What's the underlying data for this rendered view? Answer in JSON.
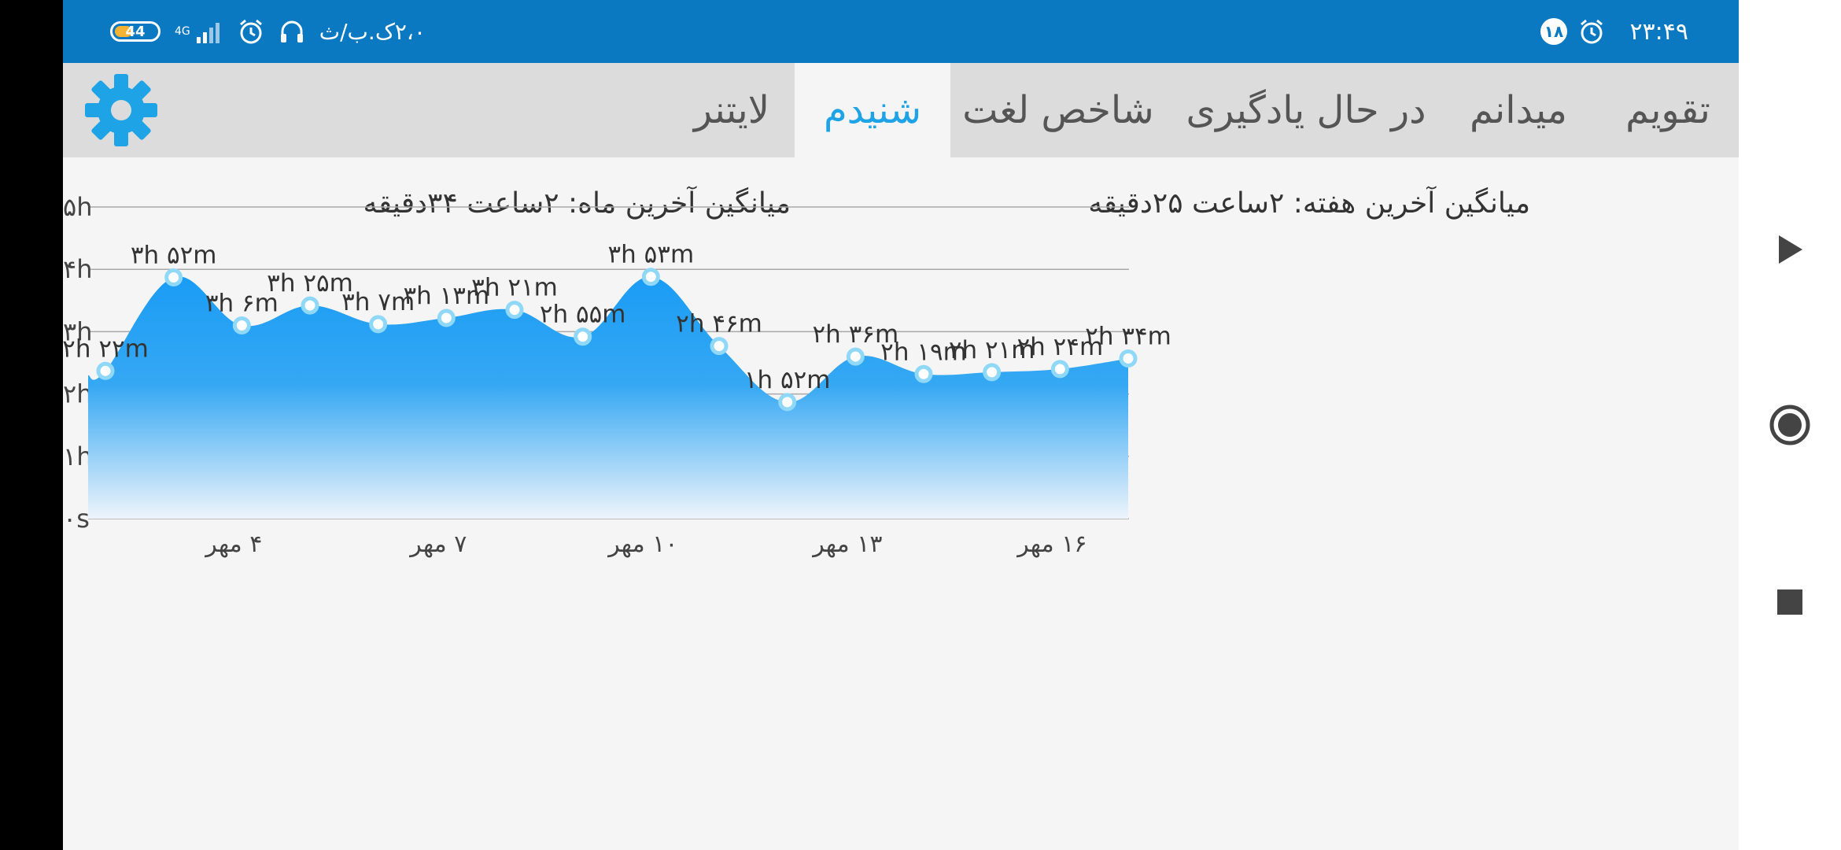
{
  "status_bar": {
    "time": "۲۳:۴۹",
    "notification_count": "۱۸",
    "speed": "۲،۰ک.ب/ث",
    "network": "4G",
    "battery": "44"
  },
  "tabs": [
    {
      "label": "تقویم",
      "active": false
    },
    {
      "label": "میدانم",
      "active": false
    },
    {
      "label": "در حال یادگیری",
      "active": false
    },
    {
      "label": "شاخص لغت",
      "active": false
    },
    {
      "label": "شنیدم",
      "active": true
    },
    {
      "label": "لایتنر",
      "active": false
    }
  ],
  "averages": {
    "week": "میانگین آخرین هفته: ۲ساعت  ۲۵دقیقه",
    "month": "میانگین آخرین ماه: ۲ساعت  ۳۴دقیقه"
  },
  "colors": {
    "accent": "#1ea3e6",
    "status_bar": "#0a79c1",
    "area_top": "#1a9cf5",
    "area_bottom": "#eef4fb"
  },
  "chart_data": {
    "type": "area",
    "ylim": [
      0,
      5
    ],
    "y_ticks": [
      "۰s",
      "۱h",
      "۲h",
      "۳h",
      "۴h",
      "۵h"
    ],
    "x_tick_labels": [
      {
        "index": 2,
        "label": "۴ مهر"
      },
      {
        "index": 5,
        "label": "۷ مهر"
      },
      {
        "index": 8,
        "label": "۱۰ مهر"
      },
      {
        "index": 11,
        "label": "۱۳ مهر"
      },
      {
        "index": 14,
        "label": "۱۶ مهر"
      }
    ],
    "points": [
      {
        "index": 0,
        "value": 2.37,
        "label": "۲h ۲۲m"
      },
      {
        "index": 1,
        "value": 3.87,
        "label": "۳h ۵۲m"
      },
      {
        "index": 2,
        "value": 3.1,
        "label": "۳h ۶m"
      },
      {
        "index": 3,
        "value": 3.42,
        "label": "۳h ۲۵m"
      },
      {
        "index": 4,
        "value": 3.12,
        "label": "۳h ۷m"
      },
      {
        "index": 5,
        "value": 3.22,
        "label": "۳h ۱۳m"
      },
      {
        "index": 6,
        "value": 3.35,
        "label": "۳h ۲۱m"
      },
      {
        "index": 7,
        "value": 2.92,
        "label": "۲h ۵۵m"
      },
      {
        "index": 8,
        "value": 3.88,
        "label": "۳h ۵۳m"
      },
      {
        "index": 9,
        "value": 2.77,
        "label": "۲h ۴۶m"
      },
      {
        "index": 10,
        "value": 1.87,
        "label": "۱h ۵۲m"
      },
      {
        "index": 11,
        "value": 2.6,
        "label": "۲h ۳۶m"
      },
      {
        "index": 12,
        "value": 2.32,
        "label": "۲h ۱۹m"
      },
      {
        "index": 13,
        "value": 2.35,
        "label": "۲h ۲۱m"
      },
      {
        "index": 14,
        "value": 2.4,
        "label": "۲h ۲۴m"
      },
      {
        "index": 15,
        "value": 2.57,
        "label": "۲h ۳۴m"
      }
    ],
    "left_edge_value": 2.3,
    "grid": true
  }
}
